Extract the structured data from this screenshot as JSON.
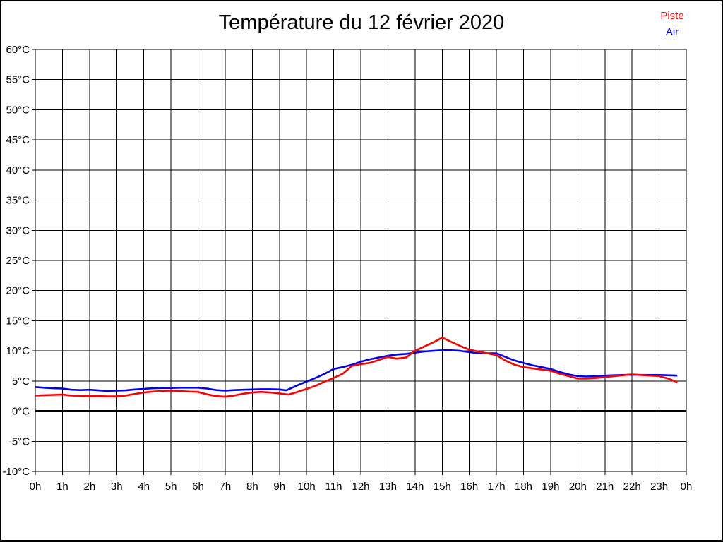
{
  "page": {
    "title": "Température du 12 février 2020"
  },
  "legend": [
    {
      "label": "Piste",
      "color": "#ff0000"
    },
    {
      "label": "Air",
      "color": "#0000ee"
    }
  ],
  "chart_data": {
    "type": "line",
    "title": "Température du 12 février 2020",
    "xlabel": "",
    "ylabel": "",
    "grid": true,
    "legend_position": "top-right",
    "x_axis": {
      "min": 0,
      "max": 24,
      "tick_step": 1,
      "tick_labels": [
        "0h",
        "1h",
        "2h",
        "3h",
        "4h",
        "5h",
        "6h",
        "7h",
        "8h",
        "9h",
        "10h",
        "11h",
        "12h",
        "13h",
        "14h",
        "15h",
        "16h",
        "17h",
        "18h",
        "19h",
        "20h",
        "21h",
        "22h",
        "23h",
        "0h"
      ]
    },
    "y_axis": {
      "min": -10,
      "max": 60,
      "tick_step": 5,
      "unit": "°C",
      "tick_labels": [
        "60°C",
        "55°C",
        "50°C",
        "45°C",
        "40°C",
        "35°C",
        "30°C",
        "25°C",
        "20°C",
        "15°C",
        "10°C",
        "5°C",
        "0°C",
        "-5°C",
        "-10°C"
      ]
    },
    "zero_line": {
      "value": 0,
      "thick": true
    },
    "series": [
      {
        "name": "Piste",
        "color": "#ff0000",
        "points": [
          [
            0,
            2.6
          ],
          [
            0.33,
            2.65
          ],
          [
            0.67,
            2.7
          ],
          [
            1,
            2.75
          ],
          [
            1.33,
            2.6
          ],
          [
            1.67,
            2.55
          ],
          [
            2,
            2.5
          ],
          [
            2.33,
            2.5
          ],
          [
            2.67,
            2.45
          ],
          [
            3,
            2.45
          ],
          [
            3.33,
            2.6
          ],
          [
            3.67,
            2.85
          ],
          [
            4,
            3.1
          ],
          [
            4.33,
            3.25
          ],
          [
            4.67,
            3.35
          ],
          [
            5,
            3.4
          ],
          [
            5.33,
            3.35
          ],
          [
            5.67,
            3.25
          ],
          [
            6,
            3.2
          ],
          [
            6.33,
            2.8
          ],
          [
            6.67,
            2.5
          ],
          [
            7,
            2.4
          ],
          [
            7.33,
            2.6
          ],
          [
            7.67,
            2.9
          ],
          [
            8,
            3.1
          ],
          [
            8.33,
            3.2
          ],
          [
            8.67,
            3.1
          ],
          [
            9,
            2.95
          ],
          [
            9.33,
            2.75
          ],
          [
            9.67,
            3.2
          ],
          [
            10,
            3.7
          ],
          [
            10.33,
            4.2
          ],
          [
            10.67,
            4.9
          ],
          [
            11,
            5.5
          ],
          [
            11.33,
            6.2
          ],
          [
            11.67,
            7.5
          ],
          [
            12,
            7.8
          ],
          [
            12.33,
            8.0
          ],
          [
            12.67,
            8.5
          ],
          [
            13,
            9.0
          ],
          [
            13.33,
            8.7
          ],
          [
            13.67,
            8.9
          ],
          [
            14,
            10.0
          ],
          [
            14.33,
            10.7
          ],
          [
            14.67,
            11.4
          ],
          [
            15,
            12.2
          ],
          [
            15.33,
            11.5
          ],
          [
            15.67,
            10.8
          ],
          [
            16,
            10.2
          ],
          [
            16.33,
            9.9
          ],
          [
            16.67,
            9.6
          ],
          [
            17,
            9.3
          ],
          [
            17.33,
            8.4
          ],
          [
            17.67,
            7.7
          ],
          [
            18,
            7.3
          ],
          [
            18.33,
            7.1
          ],
          [
            18.67,
            6.9
          ],
          [
            19,
            6.7
          ],
          [
            19.33,
            6.2
          ],
          [
            19.67,
            5.8
          ],
          [
            20,
            5.4
          ],
          [
            20.33,
            5.4
          ],
          [
            20.67,
            5.5
          ],
          [
            21,
            5.65
          ],
          [
            21.33,
            5.8
          ],
          [
            21.67,
            5.95
          ],
          [
            22,
            6.1
          ],
          [
            22.33,
            6.0
          ],
          [
            22.67,
            5.9
          ],
          [
            23,
            5.8
          ],
          [
            23.33,
            5.4
          ],
          [
            23.67,
            4.8
          ]
        ]
      },
      {
        "name": "Air",
        "color": "#0000ee",
        "points": [
          [
            0,
            4.0
          ],
          [
            0.33,
            3.9
          ],
          [
            0.67,
            3.8
          ],
          [
            1,
            3.75
          ],
          [
            1.33,
            3.55
          ],
          [
            1.67,
            3.5
          ],
          [
            2,
            3.55
          ],
          [
            2.33,
            3.45
          ],
          [
            2.67,
            3.35
          ],
          [
            3,
            3.4
          ],
          [
            3.33,
            3.45
          ],
          [
            3.67,
            3.6
          ],
          [
            4,
            3.7
          ],
          [
            4.33,
            3.8
          ],
          [
            4.67,
            3.85
          ],
          [
            5,
            3.85
          ],
          [
            5.33,
            3.9
          ],
          [
            5.67,
            3.9
          ],
          [
            6,
            3.9
          ],
          [
            6.33,
            3.75
          ],
          [
            6.67,
            3.5
          ],
          [
            7,
            3.4
          ],
          [
            7.33,
            3.5
          ],
          [
            7.67,
            3.55
          ],
          [
            8,
            3.6
          ],
          [
            8.33,
            3.65
          ],
          [
            8.67,
            3.65
          ],
          [
            9,
            3.6
          ],
          [
            9.25,
            3.45
          ],
          [
            9.67,
            4.3
          ],
          [
            10,
            4.9
          ],
          [
            10.33,
            5.5
          ],
          [
            10.67,
            6.2
          ],
          [
            11,
            7.0
          ],
          [
            11.33,
            7.3
          ],
          [
            11.67,
            7.7
          ],
          [
            12,
            8.2
          ],
          [
            12.33,
            8.6
          ],
          [
            12.67,
            8.9
          ],
          [
            13,
            9.2
          ],
          [
            13.33,
            9.4
          ],
          [
            13.67,
            9.5
          ],
          [
            14,
            9.7
          ],
          [
            14.33,
            9.9
          ],
          [
            14.67,
            10.0
          ],
          [
            15,
            10.1
          ],
          [
            15.33,
            10.1
          ],
          [
            15.67,
            10.0
          ],
          [
            16,
            9.8
          ],
          [
            16.33,
            9.6
          ],
          [
            16.67,
            9.6
          ],
          [
            17,
            9.6
          ],
          [
            17.33,
            9.0
          ],
          [
            17.67,
            8.4
          ],
          [
            18,
            8.0
          ],
          [
            18.33,
            7.6
          ],
          [
            18.67,
            7.3
          ],
          [
            19,
            7.0
          ],
          [
            19.33,
            6.5
          ],
          [
            19.67,
            6.1
          ],
          [
            20,
            5.8
          ],
          [
            20.33,
            5.75
          ],
          [
            20.67,
            5.8
          ],
          [
            21,
            5.9
          ],
          [
            21.33,
            5.95
          ],
          [
            21.67,
            6.0
          ],
          [
            22,
            6.05
          ],
          [
            22.33,
            6.0
          ],
          [
            22.67,
            6.0
          ],
          [
            23,
            6.0
          ],
          [
            23.33,
            5.95
          ],
          [
            23.67,
            5.9
          ]
        ]
      }
    ]
  }
}
